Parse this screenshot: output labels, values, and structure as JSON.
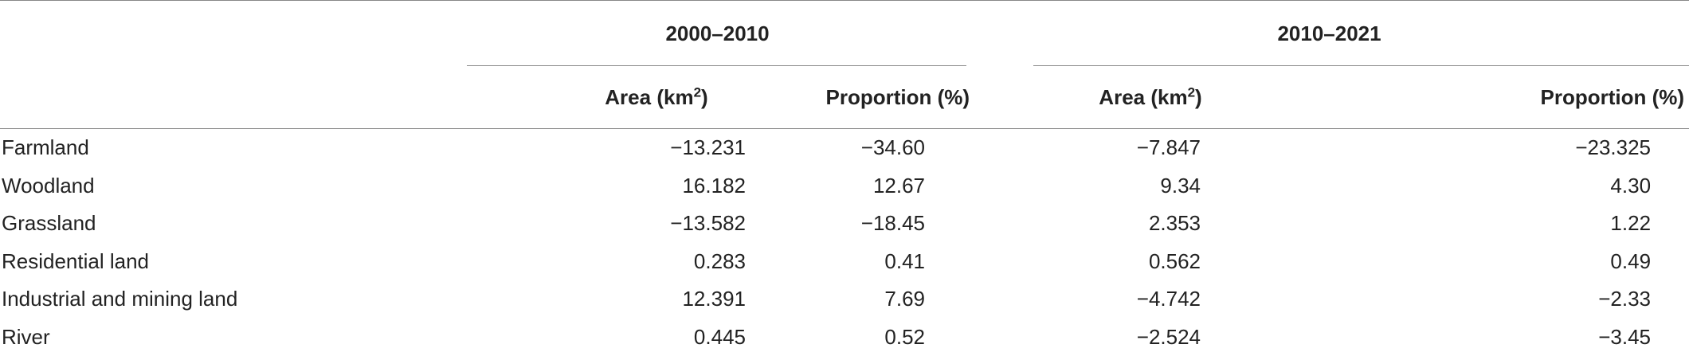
{
  "table": {
    "groups": [
      {
        "label": "2000–2010"
      },
      {
        "label": "2010–2021"
      }
    ],
    "subheaders": {
      "area_label": "Area (km",
      "area_sup": "2",
      "area_close": ")",
      "proportion_label": "Proportion (%)"
    },
    "rows": [
      {
        "label": "Farmland",
        "area_2000_2010": "−13.231",
        "prop_2000_2010": "−34.60",
        "area_2010_2021": "−7.847",
        "prop_2010_2021": "−23.325"
      },
      {
        "label": "Woodland",
        "area_2000_2010": "16.182",
        "prop_2000_2010": "12.67",
        "area_2010_2021": "9.34",
        "prop_2010_2021": "4.30"
      },
      {
        "label": "Grassland",
        "area_2000_2010": "−13.582",
        "prop_2000_2010": "−18.45",
        "area_2010_2021": "2.353",
        "prop_2010_2021": "1.22"
      },
      {
        "label": "Residential land",
        "area_2000_2010": "0.283",
        "prop_2000_2010": "0.41",
        "area_2010_2021": "0.562",
        "prop_2010_2021": "0.49"
      },
      {
        "label": "Industrial and mining land",
        "area_2000_2010": "12.391",
        "prop_2000_2010": "7.69",
        "area_2010_2021": "−4.742",
        "prop_2010_2021": "−2.33"
      },
      {
        "label": "River",
        "area_2000_2010": "0.445",
        "prop_2000_2010": "0.52",
        "area_2010_2021": "−2.524",
        "prop_2010_2021": "−3.45"
      }
    ]
  }
}
